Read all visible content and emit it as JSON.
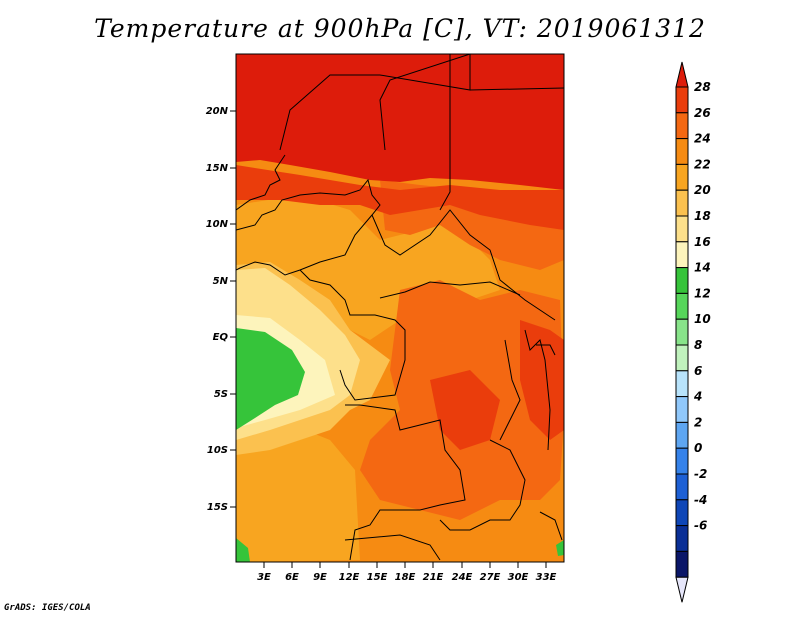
{
  "title": "Temperature at 900hPa [C], VT: 2019061312",
  "footer": "GrADS: IGES/COLA",
  "lat_ticks": [
    "20N",
    "15N",
    "10N",
    "5N",
    "EQ",
    "5S",
    "10S",
    "15S"
  ],
  "lon_ticks": [
    "3E",
    "6E",
    "9E",
    "12E",
    "15E",
    "18E",
    "21E",
    "24E",
    "27E",
    "30E",
    "33E"
  ],
  "colorbar": {
    "labels": [
      "28",
      "26",
      "24",
      "22",
      "20",
      "18",
      "16",
      "14",
      "12",
      "10",
      "8",
      "6",
      "4",
      "2",
      "0",
      "-2",
      "-4",
      "-6"
    ],
    "colors": [
      "#dd1c0b",
      "#ea3d0c",
      "#f46812",
      "#f68b12",
      "#f8a520",
      "#fbc14f",
      "#fde08b",
      "#fdf4bc",
      "#36c43a",
      "#56d65a",
      "#88e48a",
      "#c0f2bd",
      "#b8e3fb",
      "#90c8fb",
      "#5ea6f2",
      "#3582ea",
      "#1d60d5",
      "#0e46b7",
      "#0a2f96",
      "#0a1668",
      "#e6e6fa"
    ]
  },
  "field_colors": {
    "c28": "#dd1c0b",
    "c26": "#ea3d0c",
    "c24": "#f46812",
    "c22": "#f68b12",
    "c20": "#f8a520",
    "c18": "#fbc14f",
    "c16": "#fde08b",
    "c14": "#fdf4bc",
    "c12": "#36c43a"
  }
}
